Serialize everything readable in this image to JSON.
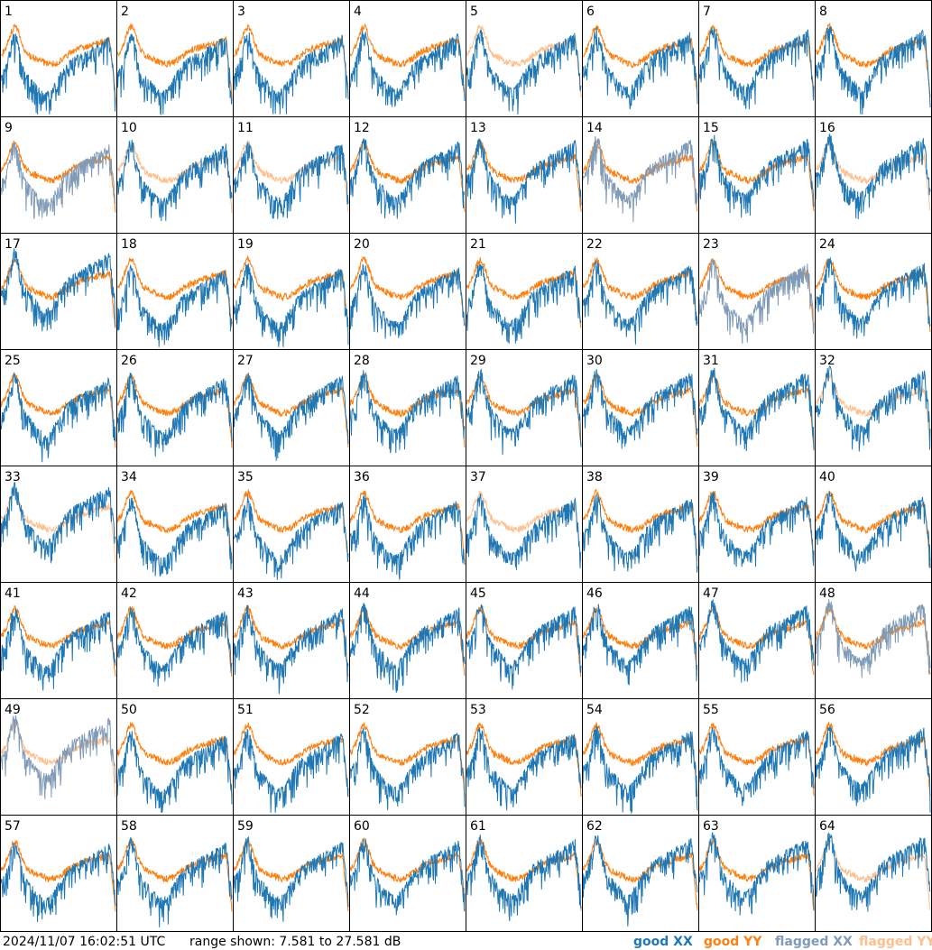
{
  "panels": [
    {
      "label": "1",
      "xx": "good",
      "yy": "good"
    },
    {
      "label": "2",
      "xx": "good",
      "yy": "good"
    },
    {
      "label": "3",
      "xx": "good",
      "yy": "good"
    },
    {
      "label": "4",
      "xx": "good",
      "yy": "good"
    },
    {
      "label": "5",
      "xx": "good",
      "yy": "flagged"
    },
    {
      "label": "6",
      "xx": "good",
      "yy": "good"
    },
    {
      "label": "7",
      "xx": "good",
      "yy": "good"
    },
    {
      "label": "8",
      "xx": "good",
      "yy": "good"
    },
    {
      "label": "9",
      "xx": "flagged",
      "yy": "good"
    },
    {
      "label": "10",
      "xx": "good",
      "yy": "flagged"
    },
    {
      "label": "11",
      "xx": "good",
      "yy": "flagged"
    },
    {
      "label": "12",
      "xx": "good",
      "yy": "good"
    },
    {
      "label": "13",
      "xx": "good",
      "yy": "good"
    },
    {
      "label": "14",
      "xx": "flagged",
      "yy": "good"
    },
    {
      "label": "15",
      "xx": "good",
      "yy": "good"
    },
    {
      "label": "16",
      "xx": "good",
      "yy": "flagged"
    },
    {
      "label": "17",
      "xx": "good",
      "yy": "good"
    },
    {
      "label": "18",
      "xx": "good",
      "yy": "good"
    },
    {
      "label": "19",
      "xx": "good",
      "yy": "good"
    },
    {
      "label": "20",
      "xx": "good",
      "yy": "good"
    },
    {
      "label": "21",
      "xx": "good",
      "yy": "good"
    },
    {
      "label": "22",
      "xx": "good",
      "yy": "good"
    },
    {
      "label": "23",
      "xx": "flagged",
      "yy": "good"
    },
    {
      "label": "24",
      "xx": "good",
      "yy": "good"
    },
    {
      "label": "25",
      "xx": "good",
      "yy": "good"
    },
    {
      "label": "26",
      "xx": "good",
      "yy": "good"
    },
    {
      "label": "27",
      "xx": "good",
      "yy": "good"
    },
    {
      "label": "28",
      "xx": "good",
      "yy": "good"
    },
    {
      "label": "29",
      "xx": "good",
      "yy": "good"
    },
    {
      "label": "30",
      "xx": "good",
      "yy": "good"
    },
    {
      "label": "31",
      "xx": "good",
      "yy": "good"
    },
    {
      "label": "32",
      "xx": "good",
      "yy": "flagged"
    },
    {
      "label": "33",
      "xx": "good",
      "yy": "flagged"
    },
    {
      "label": "34",
      "xx": "good",
      "yy": "good"
    },
    {
      "label": "35",
      "xx": "good",
      "yy": "good"
    },
    {
      "label": "36",
      "xx": "good",
      "yy": "good"
    },
    {
      "label": "37",
      "xx": "good",
      "yy": "flagged"
    },
    {
      "label": "38",
      "xx": "good",
      "yy": "good"
    },
    {
      "label": "39",
      "xx": "good",
      "yy": "good"
    },
    {
      "label": "40",
      "xx": "good",
      "yy": "good"
    },
    {
      "label": "41",
      "xx": "good",
      "yy": "good"
    },
    {
      "label": "42",
      "xx": "good",
      "yy": "good"
    },
    {
      "label": "43",
      "xx": "good",
      "yy": "good"
    },
    {
      "label": "44",
      "xx": "good",
      "yy": "good"
    },
    {
      "label": "45",
      "xx": "good",
      "yy": "good"
    },
    {
      "label": "46",
      "xx": "good",
      "yy": "good"
    },
    {
      "label": "47",
      "xx": "good",
      "yy": "good"
    },
    {
      "label": "48",
      "xx": "flagged",
      "yy": "good"
    },
    {
      "label": "49",
      "xx": "flagged",
      "yy": "flagged"
    },
    {
      "label": "50",
      "xx": "good",
      "yy": "good"
    },
    {
      "label": "51",
      "xx": "good",
      "yy": "good"
    },
    {
      "label": "52",
      "xx": "good",
      "yy": "good"
    },
    {
      "label": "53",
      "xx": "good",
      "yy": "good"
    },
    {
      "label": "54",
      "xx": "good",
      "yy": "good"
    },
    {
      "label": "55",
      "xx": "good",
      "yy": "good"
    },
    {
      "label": "56",
      "xx": "good",
      "yy": "good"
    },
    {
      "label": "57",
      "xx": "good",
      "yy": "good"
    },
    {
      "label": "58",
      "xx": "good",
      "yy": "good"
    },
    {
      "label": "59",
      "xx": "good",
      "yy": "good"
    },
    {
      "label": "60",
      "xx": "good",
      "yy": "good"
    },
    {
      "label": "61",
      "xx": "good",
      "yy": "good"
    },
    {
      "label": "62",
      "xx": "good",
      "yy": "good"
    },
    {
      "label": "63",
      "xx": "good",
      "yy": "good"
    },
    {
      "label": "64",
      "xx": "good",
      "yy": "flagged"
    }
  ],
  "footer": {
    "timestamp": "2024/11/07 16:02:51 UTC",
    "range": "range shown: 7.581 to 27.581 dB"
  },
  "legend": [
    {
      "text": "good XX",
      "color": "#1f77b4"
    },
    {
      "text": "good YY",
      "color": "#ff7f0e"
    },
    {
      "text": "flagged XX",
      "color": "#7f9bb8"
    },
    {
      "text": "flagged YY",
      "color": "#ffbf8c"
    }
  ]
}
